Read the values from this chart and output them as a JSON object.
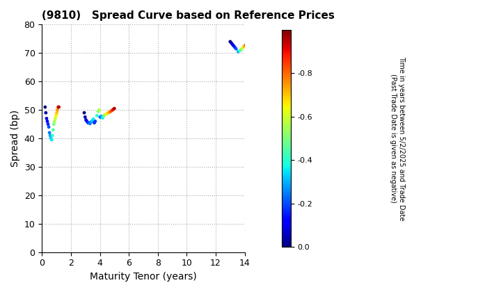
{
  "title": "(9810)   Spread Curve based on Reference Prices",
  "xlabel": "Maturity Tenor (years)",
  "ylabel": "Spread (bp)",
  "colorbar_label_line1": "Time in years between 5/2/2025 and Trade Date",
  "colorbar_label_line2": "(Past Trade Date is given as negative)",
  "xlim": [
    0,
    14
  ],
  "ylim": [
    0,
    80
  ],
  "xticks": [
    0,
    2,
    4,
    6,
    8,
    10,
    12,
    14
  ],
  "yticks": [
    0,
    10,
    20,
    30,
    40,
    50,
    60,
    70,
    80
  ],
  "clim": [
    -1.0,
    0.0
  ],
  "cticks": [
    0.0,
    -0.2,
    -0.4,
    -0.6,
    -0.8
  ],
  "clusters": [
    {
      "tenors": [
        0.22,
        0.27,
        0.32,
        0.37,
        0.42,
        0.47,
        0.52,
        0.57,
        0.62,
        0.67,
        0.72,
        0.77,
        0.82,
        0.87,
        0.92,
        0.97,
        1.02,
        1.07,
        1.12,
        1.17
      ],
      "spreads": [
        51,
        49,
        47,
        46,
        45,
        44,
        42,
        41,
        40,
        39.5,
        41,
        43,
        45,
        46,
        47,
        48,
        49,
        50,
        51,
        51
      ],
      "times": [
        0.0,
        -0.04,
        -0.08,
        -0.12,
        -0.16,
        -0.2,
        -0.24,
        -0.28,
        -0.32,
        -0.36,
        -0.4,
        -0.45,
        -0.5,
        -0.55,
        -0.6,
        -0.65,
        -0.7,
        -0.75,
        -0.88,
        -0.95
      ]
    },
    {
      "tenors": [
        2.92,
        2.98,
        3.04,
        3.1,
        3.18,
        3.25,
        3.32,
        3.4,
        3.48,
        3.55,
        3.62,
        3.68,
        3.8,
        3.88,
        3.95,
        4.02,
        4.1,
        4.18,
        4.25,
        4.33,
        4.42,
        4.5,
        4.58,
        4.67,
        4.75,
        4.83,
        4.92,
        5.0
      ],
      "spreads": [
        49,
        47.5,
        46.5,
        46,
        45.5,
        45.5,
        45.2,
        45.8,
        46.2,
        46.8,
        45.5,
        46,
        48,
        49.5,
        50,
        47.5,
        47.8,
        47.2,
        47.8,
        48.2,
        48.5,
        48.8,
        49.0,
        49.2,
        49.5,
        49.8,
        50.2,
        50.5
      ],
      "times": [
        0.0,
        -0.04,
        -0.08,
        -0.12,
        -0.16,
        -0.2,
        -0.24,
        -0.28,
        -0.32,
        -0.36,
        -0.15,
        -0.18,
        -0.4,
        -0.5,
        -0.56,
        -0.2,
        -0.28,
        -0.36,
        -0.44,
        -0.52,
        -0.6,
        -0.65,
        -0.7,
        -0.75,
        -0.8,
        -0.85,
        -0.9,
        -0.96
      ]
    },
    {
      "tenors": [
        13.0,
        13.08,
        13.16,
        13.24,
        13.32,
        13.4,
        13.55,
        13.65,
        13.75,
        13.85,
        13.95,
        14.05,
        14.15
      ],
      "spreads": [
        74,
        73.5,
        73,
        72.5,
        72,
        71.5,
        70.5,
        70.8,
        71.2,
        71.8,
        72.3,
        72.8,
        74.0
      ],
      "times": [
        0.0,
        -0.04,
        -0.08,
        -0.12,
        -0.16,
        -0.2,
        -0.3,
        -0.4,
        -0.5,
        -0.6,
        -0.7,
        -0.82,
        -0.95
      ]
    }
  ]
}
